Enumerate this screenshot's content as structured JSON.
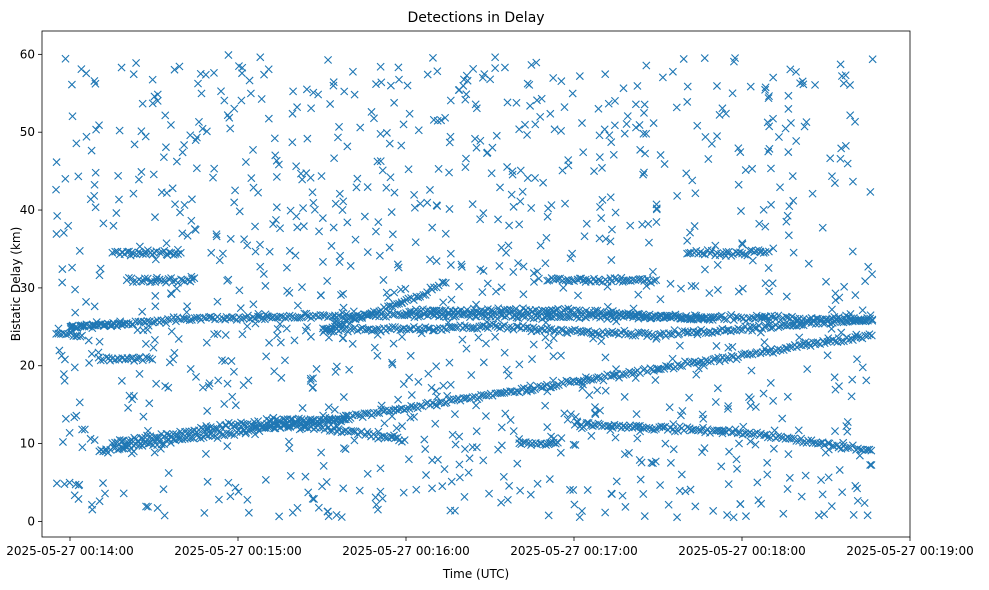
{
  "chart_data": {
    "type": "scatter",
    "title": "Detections in Delay",
    "xlabel": "Time (UTC)",
    "ylabel": "Bistatic Delay (km)",
    "marker": "x",
    "color": "#1f77b4",
    "grid": false,
    "x_start": "2025-05-27 00:13:50",
    "x_end": "2025-05-27 00:19:00",
    "xlim": [
      "2025-05-27 00:13:50",
      "2025-05-27 00:19:00"
    ],
    "ylim": [
      -2,
      63
    ],
    "x_ticks": [
      "2025-05-27 00:14:00",
      "2025-05-27 00:15:00",
      "2025-05-27 00:16:00",
      "2025-05-27 00:17:00",
      "2025-05-27 00:18:00",
      "2025-05-27 00:19:00"
    ],
    "y_ticks": [
      "0",
      "10",
      "20",
      "30",
      "40",
      "50",
      "60"
    ],
    "data_window": [
      "2025-05-27 00:13:55",
      "2025-05-27 00:18:47"
    ],
    "tracks": [
      {
        "x": [
          "2025-05-27 00:14:10",
          "2025-05-27 00:16:00",
          "2025-05-27 00:18:47"
        ],
        "y": [
          9.0,
          14.5,
          24.0
        ]
      },
      {
        "x": [
          "2025-05-27 00:14:15",
          "2025-05-27 00:15:00",
          "2025-05-27 00:15:30",
          "2025-05-27 00:16:00"
        ],
        "y": [
          10.0,
          12.5,
          12.0,
          10.5
        ]
      },
      {
        "x": [
          "2025-05-27 00:15:30",
          "2025-05-27 00:16:05",
          "2025-05-27 00:16:15"
        ],
        "y": [
          24.5,
          29.0,
          31.0
        ]
      },
      {
        "x": [
          "2025-05-27 00:16:00",
          "2025-05-27 00:17:00",
          "2025-05-27 00:17:50"
        ],
        "y": [
          27.0,
          27.0,
          26.0
        ]
      },
      {
        "x": [
          "2025-05-27 00:15:30",
          "2025-05-27 00:16:30",
          "2025-05-27 00:17:30",
          "2025-05-27 00:18:47"
        ],
        "y": [
          24.5,
          25.0,
          24.0,
          26.0
        ]
      },
      {
        "x": [
          "2025-05-27 00:14:00",
          "2025-05-27 00:14:40",
          "2025-05-27 00:16:00",
          "2025-05-27 00:18:47"
        ],
        "y": [
          25.0,
          26.0,
          26.5,
          26.0
        ]
      },
      {
        "x": [
          "2025-05-27 00:17:00",
          "2025-05-27 00:18:00",
          "2025-05-27 00:18:47"
        ],
        "y": [
          12.5,
          11.5,
          9.0
        ]
      },
      {
        "x": [
          "2025-05-27 00:16:50",
          "2025-05-27 00:17:30"
        ],
        "y": [
          31.0,
          31.0
        ]
      },
      {
        "x": [
          "2025-05-27 00:17:40",
          "2025-05-27 00:18:10"
        ],
        "y": [
          34.5,
          34.5
        ]
      },
      {
        "x": [
          "2025-05-27 00:14:15",
          "2025-05-27 00:14:40"
        ],
        "y": [
          34.5,
          34.5
        ]
      },
      {
        "x": [
          "2025-05-27 00:14:20",
          "2025-05-27 00:14:45"
        ],
        "y": [
          31.0,
          31.0
        ]
      },
      {
        "x": [
          "2025-05-27 00:14:10",
          "2025-05-27 00:14:30"
        ],
        "y": [
          20.8,
          21.0
        ]
      },
      {
        "x": [
          "2025-05-27 00:14:00",
          "2025-05-27 00:14:20"
        ],
        "y": [
          25.0,
          25.3
        ]
      },
      {
        "x": [
          "2025-05-27 00:13:55",
          "2025-05-27 00:14:05"
        ],
        "y": [
          24.0,
          24.0
        ]
      },
      {
        "x": [
          "2025-05-27 00:16:40",
          "2025-05-27 00:16:55"
        ],
        "y": [
          10.0,
          10.0
        ]
      },
      {
        "x": [
          "2025-05-27 00:15:10",
          "2025-05-27 00:15:40"
        ],
        "y": [
          13.0,
          13.0
        ]
      }
    ],
    "noise_points": 1100,
    "noise_y_range": [
      0.5,
      60
    ]
  }
}
